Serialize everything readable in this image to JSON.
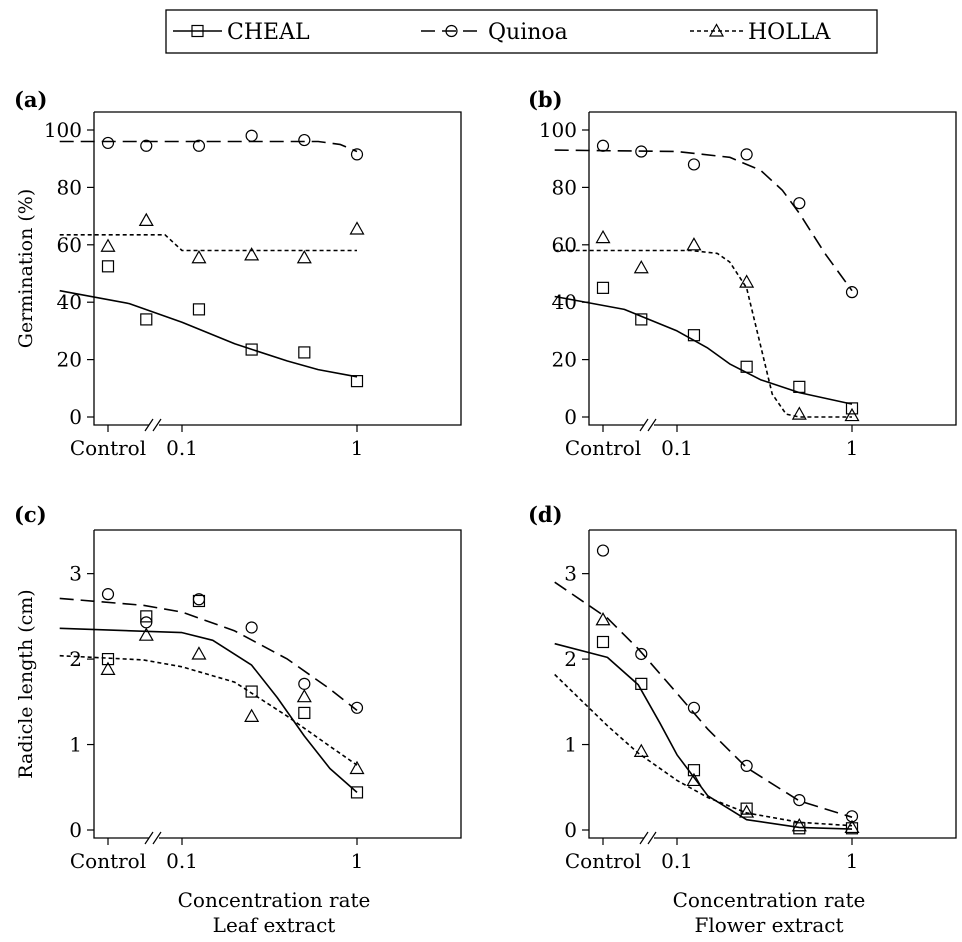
{
  "legend": {
    "items": [
      {
        "name": "CHEAL",
        "marker": "square",
        "dash": "solid"
      },
      {
        "name": "Quinoa",
        "marker": "circle",
        "dash": "dashed"
      },
      {
        "name": "HOLLA",
        "marker": "triangle",
        "dash": "dotted"
      }
    ]
  },
  "x_axis_titles": {
    "left": [
      "Concentration rate",
      "Leaf extract"
    ],
    "right": [
      "Concentration rate",
      "Flower extract"
    ]
  },
  "chart_data": [
    {
      "panel": "(a)",
      "type": "scatter",
      "xscale": "log",
      "xlabel": "",
      "ylabel": "Germination (%)",
      "ylim": [
        0,
        100
      ],
      "yticks": [
        0,
        20,
        40,
        60,
        80,
        100
      ],
      "xticks": [
        {
          "value": "Control",
          "label": "Control"
        },
        {
          "value": 0.1,
          "label": "0.1"
        },
        {
          "value": 1,
          "label": "1"
        }
      ],
      "series": [
        {
          "name": "CHEAL",
          "control": 52.5,
          "points": [
            [
              0.0625,
              34
            ],
            [
              0.125,
              37.5
            ],
            [
              0.25,
              23.5
            ],
            [
              0.5,
              22.5
            ],
            [
              1,
              12.5
            ]
          ],
          "fit": [
            [
              0.02,
              44
            ],
            [
              0.05,
              39.5
            ],
            [
              0.1,
              33
            ],
            [
              0.2,
              25.5
            ],
            [
              0.4,
              19.5
            ],
            [
              0.6,
              16.5
            ],
            [
              1,
              14
            ]
          ]
        },
        {
          "name": "Quinoa",
          "control": 95.5,
          "points": [
            [
              0.0625,
              94.5
            ],
            [
              0.125,
              94.5
            ],
            [
              0.25,
              98
            ],
            [
              0.5,
              96.5
            ],
            [
              1,
              91.5
            ]
          ],
          "fit": [
            [
              0.02,
              96
            ],
            [
              0.3,
              96
            ],
            [
              0.6,
              96
            ],
            [
              0.8,
              95
            ],
            [
              1,
              92.5
            ]
          ]
        },
        {
          "name": "HOLLA",
          "control": 59.5,
          "points": [
            [
              0.0625,
              68.5
            ],
            [
              0.125,
              55.5
            ],
            [
              0.25,
              56.5
            ],
            [
              0.5,
              55.5
            ],
            [
              1,
              65.5
            ]
          ],
          "fit": [
            [
              0.02,
              63.5
            ],
            [
              0.08,
              63.5
            ],
            [
              0.1,
              58
            ],
            [
              0.2,
              58
            ],
            [
              0.5,
              58
            ],
            [
              1,
              58
            ]
          ]
        }
      ]
    },
    {
      "panel": "(b)",
      "type": "scatter",
      "xscale": "log",
      "xlabel": "",
      "ylabel": "",
      "ylim": [
        0,
        100
      ],
      "yticks": [
        0,
        20,
        40,
        60,
        80,
        100
      ],
      "xticks": [
        {
          "value": "Control",
          "label": "Control"
        },
        {
          "value": 0.1,
          "label": "0.1"
        },
        {
          "value": 1,
          "label": "1"
        }
      ],
      "series": [
        {
          "name": "CHEAL",
          "control": 45,
          "points": [
            [
              0.0625,
              34
            ],
            [
              0.125,
              28.5
            ],
            [
              0.25,
              17.5
            ],
            [
              0.5,
              10.5
            ],
            [
              1,
              3
            ]
          ],
          "fit": [
            [
              0.02,
              42
            ],
            [
              0.05,
              37.5
            ],
            [
              0.1,
              30
            ],
            [
              0.15,
              24
            ],
            [
              0.2,
              18.5
            ],
            [
              0.3,
              13
            ],
            [
              0.5,
              8.5
            ],
            [
              1,
              4.5
            ]
          ]
        },
        {
          "name": "Quinoa",
          "control": 94.5,
          "points": [
            [
              0.0625,
              92.5
            ],
            [
              0.125,
              88
            ],
            [
              0.25,
              91.5
            ],
            [
              0.5,
              74.5
            ],
            [
              1,
              43.5
            ]
          ],
          "fit": [
            [
              0.02,
              93
            ],
            [
              0.1,
              92.5
            ],
            [
              0.2,
              90.5
            ],
            [
              0.3,
              86
            ],
            [
              0.4,
              79
            ],
            [
              0.5,
              71
            ],
            [
              0.7,
              57
            ],
            [
              1,
              44
            ]
          ]
        },
        {
          "name": "HOLLA",
          "control": 62.5,
          "points": [
            [
              0.0625,
              52
            ],
            [
              0.125,
              60
            ],
            [
              0.25,
              47
            ],
            [
              0.5,
              1
            ],
            [
              1,
              0.5
            ]
          ],
          "fit": [
            [
              0.02,
              58
            ],
            [
              0.12,
              58
            ],
            [
              0.17,
              57
            ],
            [
              0.2,
              54
            ],
            [
              0.25,
              45
            ],
            [
              0.3,
              25
            ],
            [
              0.35,
              8
            ],
            [
              0.42,
              1
            ],
            [
              0.5,
              0
            ],
            [
              1,
              0
            ]
          ]
        }
      ]
    },
    {
      "panel": "(c)",
      "type": "scatter",
      "xscale": "log",
      "xlabel": "",
      "ylabel": "Radicle length (cm)",
      "ylim": [
        0,
        3.3
      ],
      "yticks": [
        0,
        1,
        2,
        3
      ],
      "xticks": [
        {
          "value": "Control",
          "label": "Control"
        },
        {
          "value": 0.1,
          "label": "0.1"
        },
        {
          "value": 1,
          "label": "1"
        }
      ],
      "series": [
        {
          "name": "CHEAL",
          "control": 2.0,
          "points": [
            [
              0.0625,
              2.5
            ],
            [
              0.125,
              2.68
            ],
            [
              0.25,
              1.62
            ],
            [
              0.5,
              1.37
            ],
            [
              1,
              0.44
            ]
          ],
          "fit": [
            [
              0.02,
              2.36
            ],
            [
              0.1,
              2.31
            ],
            [
              0.15,
              2.22
            ],
            [
              0.25,
              1.93
            ],
            [
              0.35,
              1.55
            ],
            [
              0.5,
              1.1
            ],
            [
              0.7,
              0.72
            ],
            [
              1,
              0.44
            ]
          ]
        },
        {
          "name": "Quinoa",
          "control": 2.76,
          "points": [
            [
              0.0625,
              2.43
            ],
            [
              0.125,
              2.7
            ],
            [
              0.25,
              2.37
            ],
            [
              0.5,
              1.71
            ],
            [
              1,
              1.43
            ]
          ],
          "fit": [
            [
              0.02,
              2.71
            ],
            [
              0.06,
              2.63
            ],
            [
              0.1,
              2.55
            ],
            [
              0.2,
              2.33
            ],
            [
              0.4,
              2.0
            ],
            [
              0.7,
              1.65
            ],
            [
              1,
              1.4
            ]
          ]
        },
        {
          "name": "HOLLA",
          "control": 1.88,
          "points": [
            [
              0.0625,
              2.28
            ],
            [
              0.125,
              2.06
            ],
            [
              0.25,
              1.33
            ],
            [
              0.5,
              1.56
            ],
            [
              1,
              0.72
            ]
          ],
          "fit": [
            [
              0.02,
              2.04
            ],
            [
              0.06,
              1.99
            ],
            [
              0.1,
              1.91
            ],
            [
              0.2,
              1.73
            ],
            [
              0.4,
              1.33
            ],
            [
              0.7,
              0.98
            ],
            [
              1,
              0.76
            ]
          ]
        }
      ]
    },
    {
      "panel": "(d)",
      "type": "scatter",
      "xscale": "log",
      "xlabel": "",
      "ylabel": "",
      "ylim": [
        0,
        3.3
      ],
      "yticks": [
        0,
        1,
        2,
        3
      ],
      "xticks": [
        {
          "value": "Control",
          "label": "Control"
        },
        {
          "value": 0.1,
          "label": "0.1"
        },
        {
          "value": 1,
          "label": "1"
        }
      ],
      "series": [
        {
          "name": "CHEAL",
          "control": 2.2,
          "points": [
            [
              0.0625,
              1.71
            ],
            [
              0.125,
              0.7
            ],
            [
              0.25,
              0.25
            ],
            [
              0.5,
              0.02
            ],
            [
              1,
              0.02
            ]
          ],
          "fit": [
            [
              0.02,
              2.18
            ],
            [
              0.04,
              2.02
            ],
            [
              0.06,
              1.7
            ],
            [
              0.08,
              1.25
            ],
            [
              0.1,
              0.88
            ],
            [
              0.15,
              0.4
            ],
            [
              0.25,
              0.12
            ],
            [
              0.5,
              0.03
            ],
            [
              1,
              0.01
            ]
          ]
        },
        {
          "name": "Quinoa",
          "control": 3.27,
          "points": [
            [
              0.0625,
              2.06
            ],
            [
              0.125,
              1.43
            ],
            [
              0.25,
              0.75
            ],
            [
              0.5,
              0.35
            ],
            [
              1,
              0.16
            ]
          ],
          "fit": [
            [
              0.02,
              2.9
            ],
            [
              0.04,
              2.48
            ],
            [
              0.06,
              2.12
            ],
            [
              0.1,
              1.6
            ],
            [
              0.15,
              1.18
            ],
            [
              0.25,
              0.73
            ],
            [
              0.5,
              0.34
            ],
            [
              1,
              0.15
            ]
          ]
        },
        {
          "name": "HOLLA",
          "control": 2.46,
          "points": [
            [
              0.0625,
              0.92
            ],
            [
              0.125,
              0.58
            ],
            [
              0.25,
              0.21
            ],
            [
              0.5,
              0.05
            ],
            [
              1,
              0.03
            ]
          ],
          "fit": [
            [
              0.02,
              1.82
            ],
            [
              0.04,
              1.22
            ],
            [
              0.06,
              0.9
            ],
            [
              0.1,
              0.58
            ],
            [
              0.15,
              0.38
            ],
            [
              0.25,
              0.2
            ],
            [
              0.5,
              0.09
            ],
            [
              1,
              0.05
            ]
          ]
        }
      ]
    }
  ]
}
